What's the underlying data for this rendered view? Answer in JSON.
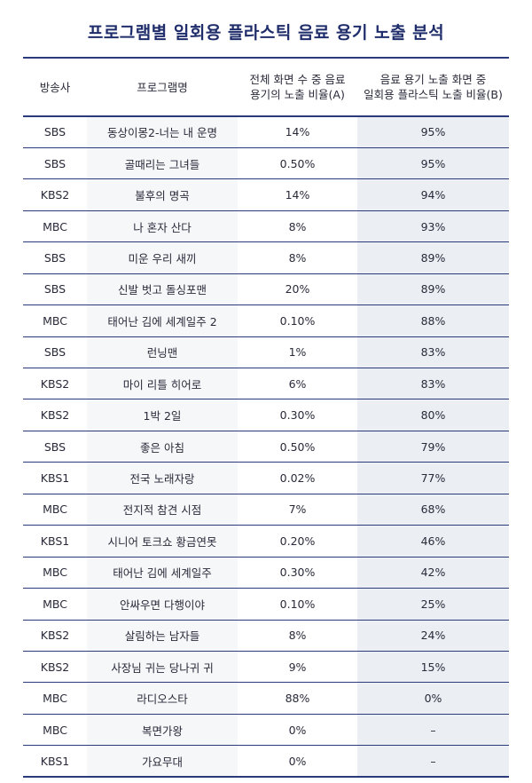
{
  "chart_data": {
    "type": "table",
    "title": "프로그램별 일회용 플라스틱 음료 용기 노출 분석",
    "columns": [
      "방송사",
      "프로그램명",
      "전체 화면 수 중 음료 용기의 노출 비율(A)",
      "음료 용기 노출 화면 중 일회용 플라스틱 노출 비율(B)"
    ],
    "column_lines": {
      "c3": [
        "전체 화면 수 중 음료",
        "용기의 노출 비율(A)"
      ],
      "c4": [
        "음료 용기 노출 화면 중",
        "일회용 플라스틱 노출 비율(B)"
      ]
    },
    "rows": [
      [
        "SBS",
        "동상이몽2-너는 내 운명",
        "14%",
        "95%"
      ],
      [
        "SBS",
        "골때리는 그녀들",
        "0.50%",
        "95%"
      ],
      [
        "KBS2",
        "불후의 명곡",
        "14%",
        "94%"
      ],
      [
        "MBC",
        "나 혼자 산다",
        "8%",
        "93%"
      ],
      [
        "SBS",
        "미운 우리 새끼",
        "8%",
        "89%"
      ],
      [
        "SBS",
        "신발 벗고 돌싱포맨",
        "20%",
        "89%"
      ],
      [
        "MBC",
        "태어난 김에 세계일주 2",
        "0.10%",
        "88%"
      ],
      [
        "SBS",
        "런닝맨",
        "1%",
        "83%"
      ],
      [
        "KBS2",
        "마이 리틀 히어로",
        "6%",
        "83%"
      ],
      [
        "KBS2",
        "1박 2일",
        "0.30%",
        "80%"
      ],
      [
        "SBS",
        "좋은 아침",
        "0.50%",
        "79%"
      ],
      [
        "KBS1",
        "전국 노래자랑",
        "0.02%",
        "77%"
      ],
      [
        "MBC",
        "전지적 참견 시점",
        "7%",
        "68%"
      ],
      [
        "KBS1",
        "시니어 토크쇼 황금연못",
        "0.20%",
        "46%"
      ],
      [
        "MBC",
        "태어난 김에 세계일주",
        "0.30%",
        "42%"
      ],
      [
        "MBC",
        "안싸우면 다행이야",
        "0.10%",
        "25%"
      ],
      [
        "KBS2",
        "살림하는 남자들",
        "8%",
        "24%"
      ],
      [
        "KBS2",
        "사장님 귀는 당나귀 귀",
        "9%",
        "15%"
      ],
      [
        "MBC",
        "라디오스타",
        "88%",
        "0%"
      ],
      [
        "MBC",
        "복면가왕",
        "0%",
        "–"
      ],
      [
        "KBS1",
        "가요무대",
        "0%",
        "–"
      ]
    ],
    "colors": {
      "title": "#1f2d6b",
      "rule": "#2b3a7a",
      "shade_b": "#ebeef3",
      "shade_name": "#f6f7f9"
    }
  }
}
